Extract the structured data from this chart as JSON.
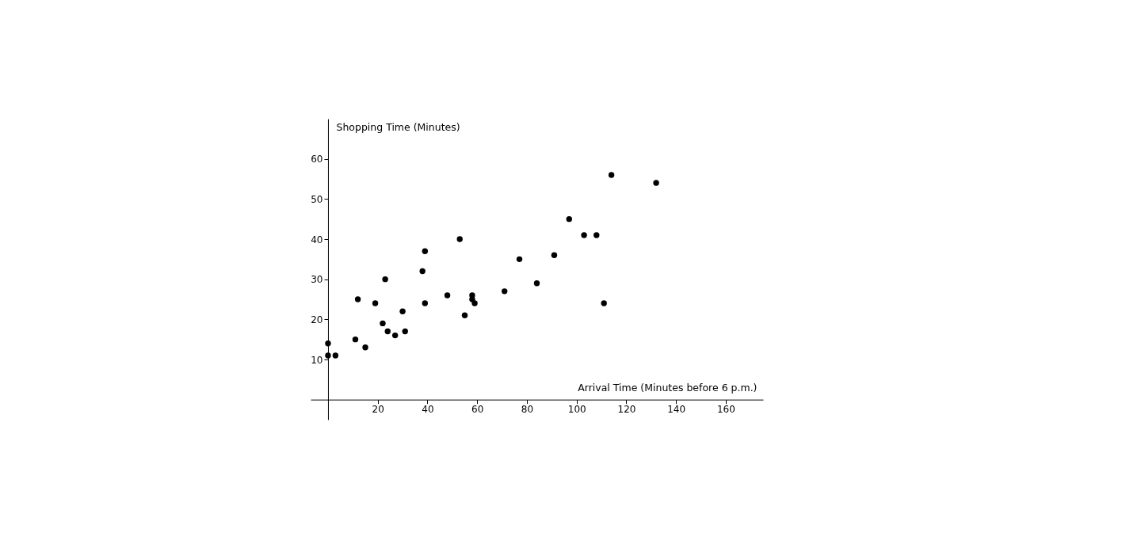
{
  "chart_data": {
    "type": "scatter",
    "xlabel": "Arrival Time (Minutes before 6 p.m.)",
    "ylabel": "Shopping Time (Minutes)",
    "x": [
      0,
      0,
      3,
      11,
      12,
      15,
      19,
      22,
      23,
      24,
      27,
      30,
      31,
      38,
      39,
      39,
      48,
      53,
      55,
      58,
      58,
      59,
      71,
      77,
      84,
      91,
      97,
      103,
      108,
      111,
      114,
      132
    ],
    "series": [
      {
        "color": "#000000",
        "values": [
          14,
          11,
          11,
          15,
          25,
          13,
          24,
          19,
          30,
          17,
          16,
          22,
          17,
          32,
          37,
          24,
          26,
          40,
          21,
          26,
          25,
          24,
          27,
          35,
          29,
          36,
          45,
          41,
          41,
          24,
          56,
          54
        ]
      }
    ],
    "xlim": [
      -7,
      175
    ],
    "ylim": [
      -5,
      70
    ],
    "xticks": [
      20,
      40,
      60,
      80,
      100,
      120,
      140,
      160
    ],
    "yticks": [
      10,
      20,
      30,
      40,
      50,
      60
    ],
    "marker": "circle",
    "grid": false
  }
}
